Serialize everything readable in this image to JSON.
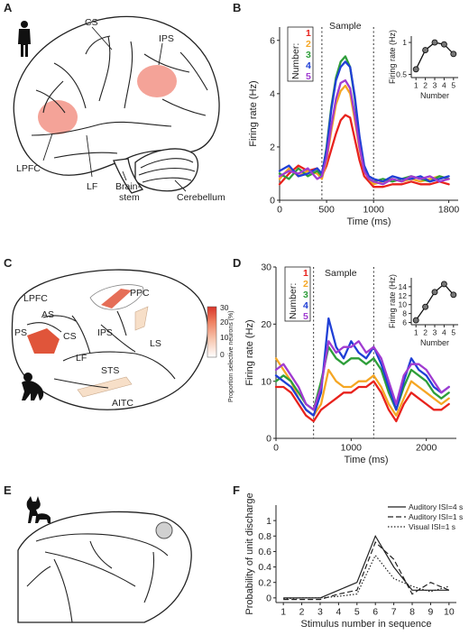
{
  "panels": {
    "A": {
      "letter": "A",
      "labels": {
        "cs": "CS",
        "ips": "IPS",
        "lpfc": "LPFC",
        "lf": "LF",
        "brainstem_1": "Brain-",
        "brainstem_2": "stem",
        "cerebellum": "Cerebellum"
      }
    },
    "B": {
      "letter": "B",
      "sample": "Sample",
      "legend_title": "Number:",
      "legend": [
        "1",
        "2",
        "3",
        "4",
        "5"
      ]
    },
    "C": {
      "letter": "C",
      "labels": {
        "lpfc": "LPFC",
        "ppc": "PPC",
        "as": "AS",
        "ps": "PS",
        "cs": "CS",
        "ips": "IPS",
        "ls": "LS",
        "lf": "LF",
        "sts": "STS",
        "aitc": "AITC"
      },
      "colorbar_label": "Proportion selective neurons (%)",
      "colorbar_ticks": [
        "30",
        "20",
        "10",
        "0"
      ]
    },
    "D": {
      "letter": "D",
      "sample": "Sample",
      "legend_title": "Number:",
      "legend": [
        "1",
        "2",
        "3",
        "4",
        "5"
      ]
    },
    "E": {
      "letter": "E"
    },
    "F": {
      "letter": "F",
      "legend": [
        "Auditory ISI=4 s",
        "Auditory ISI=1 s",
        "Visual ISI=1 s"
      ]
    }
  },
  "colors": {
    "n1": "#e8221c",
    "n2": "#f5a623",
    "n3": "#2e9e3a",
    "n4": "#1f3fd6",
    "n5": "#a03bd1",
    "hotspot": "#f07c6c",
    "region": "#e0553a"
  },
  "chart_data": [
    {
      "id": "B-main",
      "type": "line",
      "xlabel": "Time (ms)",
      "ylabel": "Firing rate (Hz)",
      "xlim": [
        0,
        1900
      ],
      "ylim": [
        0,
        6.5
      ],
      "xticks": [
        0,
        500,
        1000,
        1800
      ],
      "yticks": [
        0,
        2,
        4,
        6
      ],
      "markers": [
        450,
        1000
      ],
      "series": [
        {
          "name": "1",
          "x": [
            0,
            100,
            200,
            300,
            400,
            450,
            500,
            550,
            600,
            650,
            700,
            750,
            800,
            850,
            900,
            950,
            1000,
            1100,
            1200,
            1300,
            1400,
            1500,
            1600,
            1700,
            1800
          ],
          "values": [
            0.6,
            1.0,
            1.3,
            1.1,
            1.2,
            0.9,
            1.3,
            1.9,
            2.5,
            3.0,
            3.2,
            3.1,
            2.3,
            1.5,
            0.9,
            0.7,
            0.5,
            0.5,
            0.6,
            0.6,
            0.7,
            0.6,
            0.6,
            0.7,
            0.6
          ]
        },
        {
          "name": "2",
          "x": [
            0,
            100,
            200,
            300,
            400,
            450,
            500,
            550,
            600,
            650,
            700,
            750,
            800,
            850,
            900,
            950,
            1000,
            1100,
            1200,
            1300,
            1400,
            1500,
            1600,
            1700,
            1800
          ],
          "values": [
            0.8,
            1.2,
            0.9,
            1.1,
            1.0,
            0.8,
            1.5,
            2.6,
            3.6,
            4.1,
            4.3,
            4.0,
            3.0,
            1.9,
            1.1,
            0.8,
            0.6,
            0.7,
            0.8,
            0.7,
            0.8,
            0.7,
            0.8,
            0.9,
            0.8
          ]
        },
        {
          "name": "3",
          "x": [
            0,
            100,
            200,
            300,
            400,
            450,
            500,
            550,
            600,
            650,
            700,
            750,
            800,
            850,
            900,
            950,
            1000,
            1100,
            1200,
            1300,
            1400,
            1500,
            1600,
            1700,
            1800
          ],
          "values": [
            1.0,
            0.8,
            1.2,
            0.9,
            1.1,
            0.9,
            2.0,
            3.5,
            4.6,
            5.2,
            5.4,
            5.0,
            3.8,
            2.3,
            1.2,
            0.8,
            0.7,
            0.8,
            0.7,
            0.8,
            0.9,
            0.8,
            0.7,
            0.9,
            0.8
          ]
        },
        {
          "name": "4",
          "x": [
            0,
            100,
            200,
            300,
            400,
            450,
            500,
            550,
            600,
            650,
            700,
            750,
            800,
            850,
            900,
            950,
            1000,
            1100,
            1200,
            1300,
            1400,
            1500,
            1600,
            1700,
            1800
          ],
          "values": [
            1.1,
            1.3,
            0.9,
            1.0,
            1.2,
            1.0,
            1.9,
            3.4,
            4.5,
            5.0,
            5.2,
            5.0,
            3.9,
            2.4,
            1.3,
            0.9,
            0.8,
            0.7,
            0.9,
            0.8,
            0.8,
            0.9,
            0.7,
            0.8,
            0.9
          ]
        },
        {
          "name": "5",
          "x": [
            0,
            100,
            200,
            300,
            400,
            450,
            500,
            550,
            600,
            650,
            700,
            750,
            800,
            850,
            900,
            950,
            1000,
            1100,
            1200,
            1300,
            1400,
            1500,
            1600,
            1700,
            1800
          ],
          "values": [
            0.9,
            1.1,
            1.0,
            1.2,
            0.8,
            0.9,
            1.6,
            2.8,
            3.8,
            4.4,
            4.5,
            4.2,
            3.2,
            2.0,
            1.1,
            0.8,
            0.7,
            0.6,
            0.8,
            0.7,
            0.9,
            0.8,
            0.9,
            0.7,
            0.8
          ]
        }
      ]
    },
    {
      "id": "B-inset",
      "type": "line",
      "xlabel": "Number",
      "ylabel": "Firing rate (Hz)",
      "xlim": [
        0.5,
        5.5
      ],
      "ylim": [
        0.45,
        1.1
      ],
      "xticks": [
        1,
        2,
        3,
        4,
        5
      ],
      "yticks": [
        0.5,
        1
      ],
      "categories": [
        "1",
        "2",
        "3",
        "4",
        "5"
      ],
      "values": [
        0.58,
        0.88,
        1.0,
        0.97,
        0.82
      ]
    },
    {
      "id": "D-main",
      "type": "line",
      "xlabel": "Time (ms)",
      "ylabel": "Firing rate (Hz)",
      "xlim": [
        0,
        2400
      ],
      "ylim": [
        0,
        30
      ],
      "xticks": [
        0,
        1000,
        2000
      ],
      "yticks": [
        0,
        10,
        20,
        30
      ],
      "markers": [
        500,
        1300
      ],
      "series": [
        {
          "name": "1",
          "x": [
            0,
            100,
            200,
            300,
            400,
            500,
            600,
            700,
            800,
            900,
            1000,
            1100,
            1200,
            1300,
            1400,
            1500,
            1600,
            1700,
            1800,
            1900,
            2000,
            2100,
            2200,
            2300
          ],
          "values": [
            9,
            9,
            8,
            6,
            4,
            3,
            5,
            6,
            7,
            8,
            8,
            9,
            9,
            10,
            8,
            5,
            3,
            6,
            8,
            7,
            6,
            5,
            5,
            6
          ]
        },
        {
          "name": "2",
          "x": [
            0,
            100,
            200,
            300,
            400,
            500,
            600,
            700,
            800,
            900,
            1000,
            1100,
            1200,
            1300,
            1400,
            1500,
            1600,
            1700,
            1800,
            1900,
            2000,
            2100,
            2200,
            2300
          ],
          "values": [
            14,
            12,
            10,
            7,
            5,
            4,
            6,
            12,
            10,
            9,
            9,
            10,
            10,
            11,
            9,
            6,
            4,
            7,
            10,
            9,
            8,
            7,
            6,
            7
          ]
        },
        {
          "name": "3",
          "x": [
            0,
            100,
            200,
            300,
            400,
            500,
            600,
            700,
            800,
            900,
            1000,
            1100,
            1200,
            1300,
            1400,
            1500,
            1600,
            1700,
            1800,
            1900,
            2000,
            2100,
            2200,
            2300
          ],
          "values": [
            10,
            11,
            10,
            8,
            6,
            5,
            10,
            16,
            14,
            13,
            14,
            14,
            13,
            14,
            12,
            8,
            5,
            9,
            12,
            11,
            10,
            8,
            7,
            8
          ]
        },
        {
          "name": "4",
          "x": [
            0,
            100,
            200,
            300,
            400,
            500,
            600,
            700,
            800,
            900,
            1000,
            1100,
            1200,
            1300,
            1400,
            1500,
            1600,
            1700,
            1800,
            1900,
            2000,
            2100,
            2200,
            2300
          ],
          "values": [
            11,
            10,
            9,
            7,
            5,
            4,
            8,
            21,
            16,
            14,
            17,
            15,
            14,
            16,
            13,
            9,
            5,
            10,
            14,
            12,
            11,
            9,
            8,
            9
          ]
        },
        {
          "name": "5",
          "x": [
            0,
            100,
            200,
            300,
            400,
            500,
            600,
            700,
            800,
            900,
            1000,
            1100,
            1200,
            1300,
            1400,
            1500,
            1600,
            1700,
            1800,
            1900,
            2000,
            2100,
            2200,
            2300
          ],
          "values": [
            12,
            13,
            11,
            9,
            6,
            5,
            9,
            17,
            15,
            16,
            16,
            17,
            15,
            16,
            14,
            10,
            6,
            11,
            13,
            13,
            12,
            10,
            8,
            9
          ]
        }
      ]
    },
    {
      "id": "D-inset",
      "type": "line",
      "xlabel": "Number",
      "ylabel": "Firing rate (Hz)",
      "xlim": [
        0.5,
        5.5
      ],
      "ylim": [
        5.5,
        16
      ],
      "xticks": [
        1,
        2,
        3,
        4,
        5
      ],
      "yticks": [
        6,
        8,
        10,
        12,
        14
      ],
      "categories": [
        "1",
        "2",
        "3",
        "4",
        "5"
      ],
      "values": [
        6.5,
        9.5,
        12.8,
        14.6,
        12.2
      ]
    },
    {
      "id": "F-main",
      "type": "line",
      "xlabel": "Stimulus number in sequence",
      "ylabel": "Probability of unit discharge",
      "xlim": [
        0.6,
        10.4
      ],
      "ylim": [
        -0.06,
        1.2
      ],
      "xticks": [
        1,
        2,
        3,
        4,
        5,
        6,
        7,
        8,
        9,
        10
      ],
      "yticks": [
        0,
        0.2,
        0.4,
        0.6,
        0.8,
        1.0
      ],
      "categories": [
        "1",
        "2",
        "3",
        "4",
        "5",
        "6",
        "7",
        "8",
        "9",
        "10"
      ],
      "series": [
        {
          "name": "Auditory ISI=4 s",
          "values": [
            0,
            0,
            0,
            0.1,
            0.2,
            0.8,
            0.4,
            0.1,
            0.1,
            0.1
          ]
        },
        {
          "name": "Auditory ISI=1 s",
          "values": [
            -0.02,
            -0.02,
            -0.02,
            0.05,
            0.1,
            0.72,
            0.5,
            0.05,
            0.2,
            0.1
          ]
        },
        {
          "name": "Visual ISI=1 s",
          "values": [
            -0.01,
            0,
            0,
            0.02,
            0.05,
            0.55,
            0.25,
            0.15,
            0.08,
            0.15
          ]
        }
      ]
    }
  ]
}
